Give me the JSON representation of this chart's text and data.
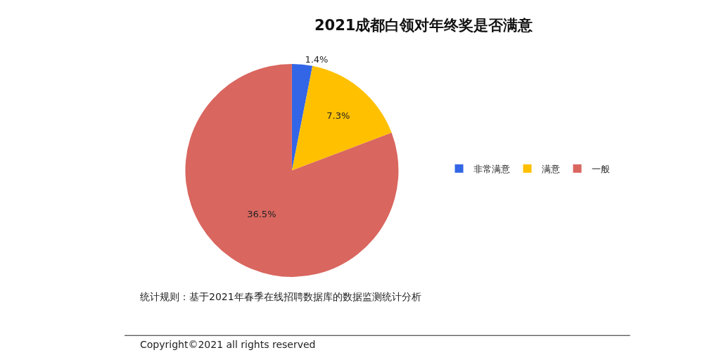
{
  "chart_data": {
    "type": "pie",
    "title": "2021成都白领对年终奖是否满意",
    "categories": [
      "非常满意",
      "满意",
      "一般"
    ],
    "values": [
      1.4,
      7.3,
      36.5
    ],
    "colors": [
      "#3366e6",
      "#ffc000",
      "#d9665f"
    ],
    "value_labels": [
      "1.4%",
      "7.3%",
      "36.5%"
    ],
    "legend": "right",
    "annotations": [
      "统计规则：基于2021年春季在线招聘数据库的数据监测统计分析",
      "Copyright©2021 all rights reserved"
    ]
  }
}
